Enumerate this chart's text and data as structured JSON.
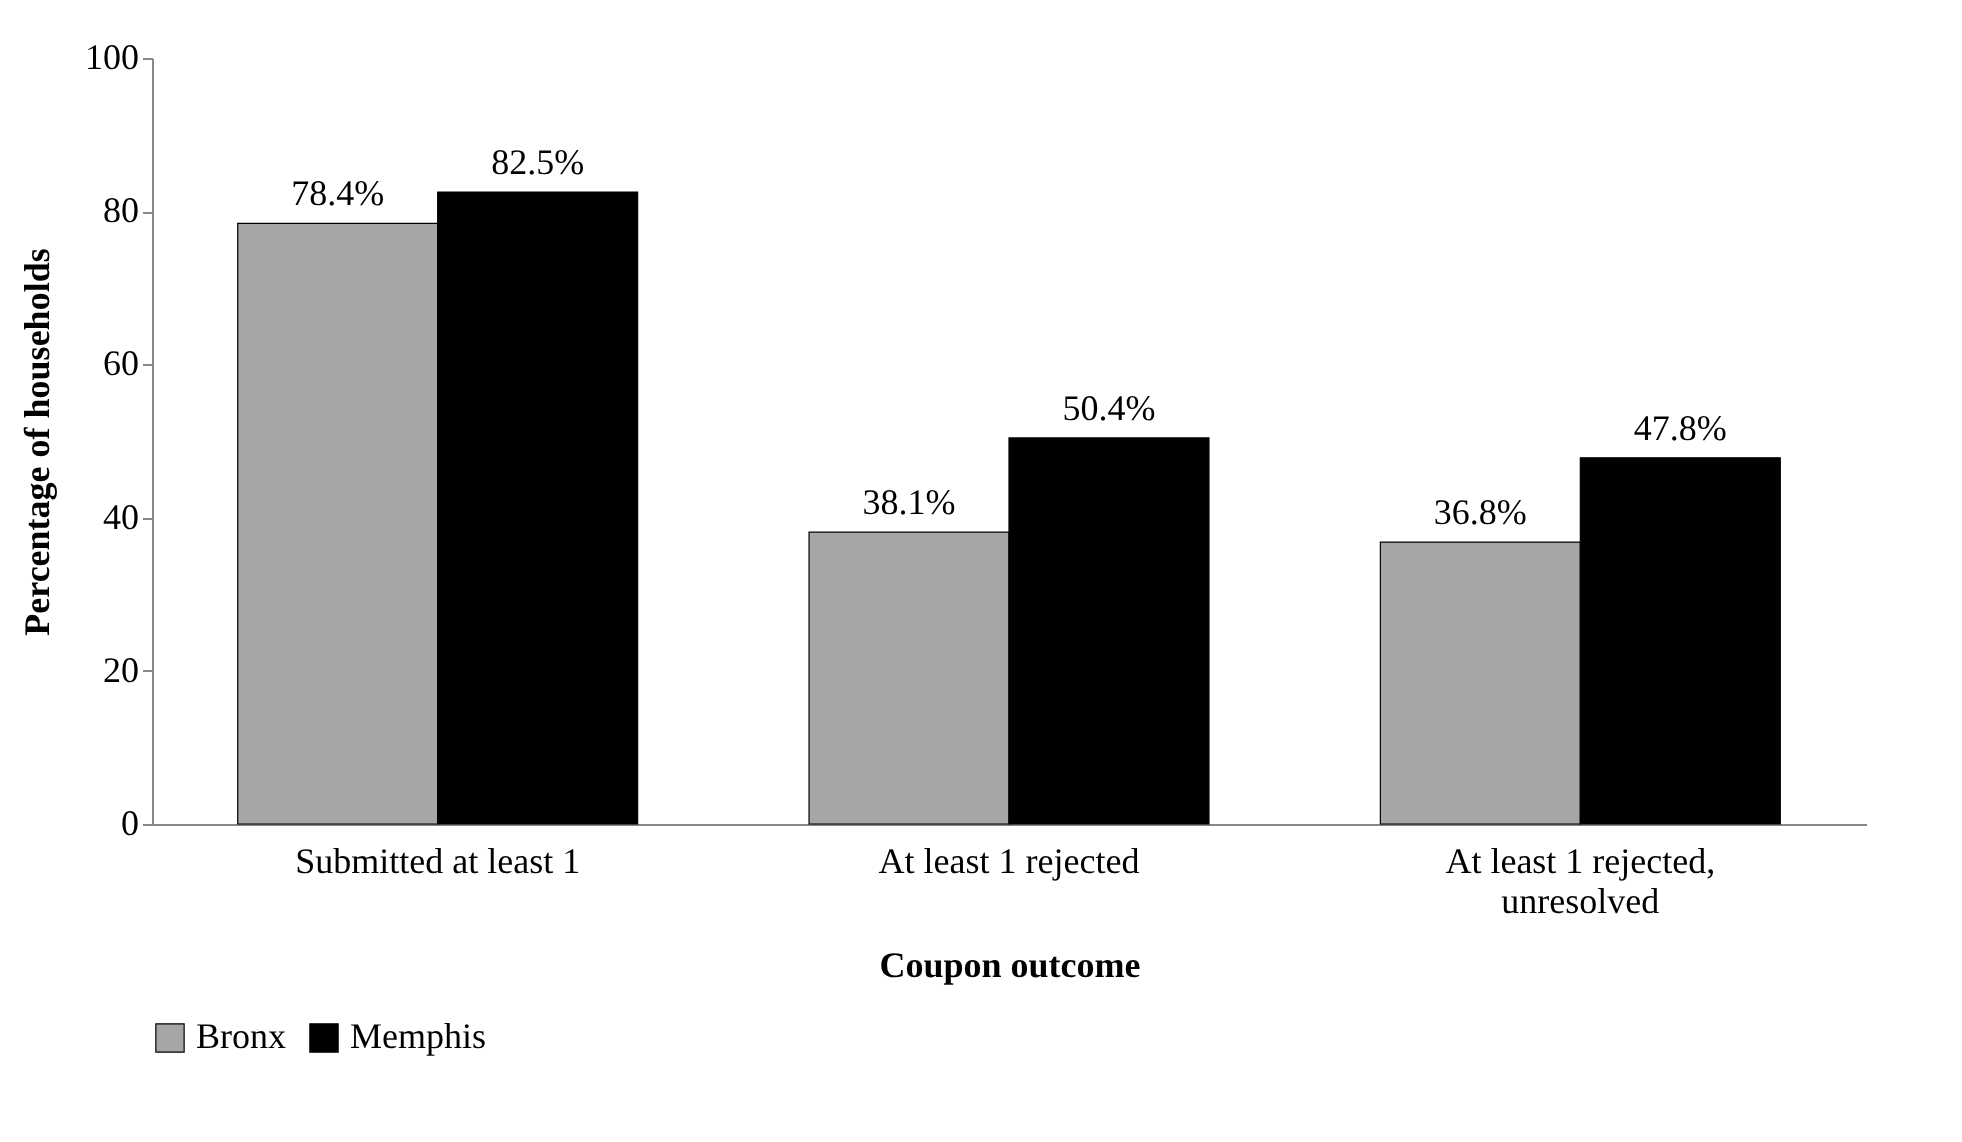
{
  "chart_data": {
    "type": "bar",
    "xlabel": "Coupon outcome",
    "ylabel": "Percentage of households",
    "categories": [
      "Submitted at least 1",
      "At least 1 rejected",
      "At least 1 rejected, unresolved"
    ],
    "series": [
      {
        "name": "Bronx",
        "color": "#a6a6a6",
        "values": [
          78.4,
          38.1,
          36.8
        ],
        "value_labels": [
          "78.4%",
          "38.1%",
          "36.8%"
        ]
      },
      {
        "name": "Memphis",
        "color": "#000000",
        "values": [
          82.5,
          50.4,
          47.8
        ],
        "value_labels": [
          "82.5%",
          "50.4%",
          "47.8%"
        ]
      }
    ],
    "ylim": [
      0,
      100
    ],
    "yticks": [
      0,
      20,
      40,
      60,
      80,
      100
    ],
    "grid": false,
    "legend": "bottom"
  }
}
